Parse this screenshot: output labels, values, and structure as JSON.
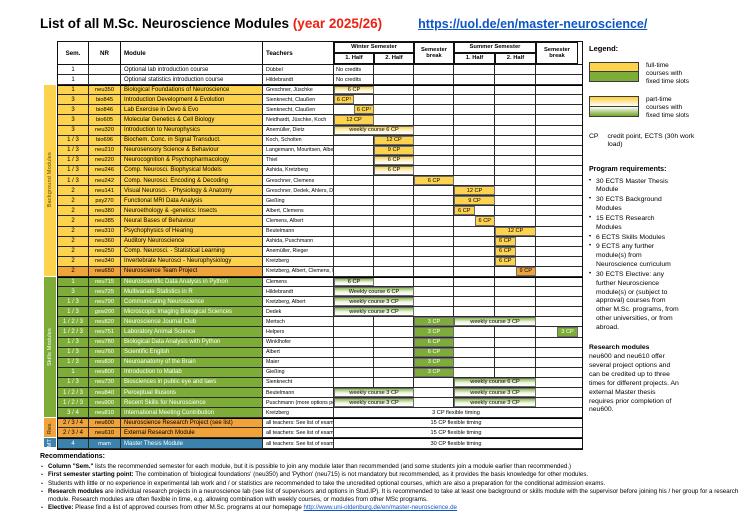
{
  "title": {
    "main": "List of all M.Sc. Neuroscience Modules ",
    "year": "(year 2025/26)",
    "link": "https://uol.de/en/master-neuroscience/"
  },
  "colors": {
    "background_yellow": "#fdd24c",
    "skills_green": "#7dad38",
    "research_orange": "#f0a339",
    "thesis_blue": "#3b83ad",
    "accent_red": "#ee2012",
    "link_blue": "#0c56c9"
  },
  "table": {
    "header": {
      "sem": "Sem.",
      "nr": "NR",
      "module": "Module",
      "teachers": "Teachers",
      "winter": "Winter Semester",
      "summer": "Summer Semester",
      "break": "Semester break",
      "half1": "1. Half",
      "half2": "2. Half"
    },
    "section_starts": [
      2,
      21,
      35,
      37
    ],
    "rows": [
      {
        "sem": "1",
        "nr": "",
        "module": "Optional lab introduction course",
        "teachers": "Dübbel",
        "color": "white",
        "bars": [
          {
            "s": 0,
            "w": 1,
            "fill": "plain",
            "text": "No credits"
          }
        ]
      },
      {
        "sem": "1",
        "nr": "",
        "module": "Optional statistics introduction course",
        "teachers": "Hildebrandt",
        "color": "white",
        "bars": [
          {
            "s": 0,
            "w": 1,
            "fill": "plain",
            "text": "No credits"
          }
        ]
      },
      {
        "sem": "1",
        "nr": "neu350",
        "module": "Biological Foundations of Neuroscience",
        "teachers": "Greschner, Jüschke",
        "color": "yellow",
        "bars": [
          {
            "s": 0,
            "w": 1,
            "fill": "gy",
            "text": "6 CP"
          }
        ]
      },
      {
        "sem": "3",
        "nr": "bio845",
        "module": "Introduction Development & Evolution",
        "teachers": "Sienknecht, Claußen",
        "color": "yellow",
        "bars": [
          {
            "s": 0,
            "w": 0.5,
            "fill": "sy",
            "text": "6 CP¹"
          }
        ]
      },
      {
        "sem": "3",
        "nr": "bio846",
        "module": "Lab Exercise in Devo & Evo",
        "teachers": "Sienknecht, Claußen",
        "color": "yellow",
        "bars": [
          {
            "s": 0.5,
            "w": 0.5,
            "fill": "sy",
            "text": "6 CP¹"
          }
        ]
      },
      {
        "sem": "3",
        "nr": "bio605",
        "module": "Molecular Genetics & Cell Biology",
        "teachers": "Neidhardt, Jüschke, Koch",
        "color": "yellow",
        "bars": [
          {
            "s": 0,
            "w": 1,
            "fill": "sy",
            "text": "12 CP"
          }
        ]
      },
      {
        "sem": "3",
        "nr": "neu320",
        "module": "Introduction to Neurophysics",
        "teachers": "Anemüller, Dietz",
        "color": "yellow",
        "bars": [
          {
            "s": 0,
            "w": 2,
            "fill": "gy",
            "text": "weekly course 6 CP"
          }
        ]
      },
      {
        "sem": "1 / 3",
        "nr": "bio696",
        "module": "Biochem. Conc. in Signal Transduct.",
        "teachers": "Koch, Scholten",
        "color": "yellow",
        "bars": [
          {
            "s": 1,
            "w": 1,
            "fill": "sy",
            "text": "12 CP"
          }
        ]
      },
      {
        "sem": "1 / 3",
        "nr": "neu210",
        "module": "Neurosensory Science & Behaviour",
        "teachers": "Langemann, Mouritsen, Albert",
        "color": "yellow",
        "bars": [
          {
            "s": 1,
            "w": 1,
            "fill": "sy",
            "text": "9 CP"
          }
        ]
      },
      {
        "sem": "1 / 3",
        "nr": "neu220",
        "module": "Neurocognition & Psychopharmacology",
        "teachers": "Thiel",
        "color": "yellow",
        "bars": [
          {
            "s": 1,
            "w": 1,
            "fill": "gy",
            "text": "6 CP"
          }
        ]
      },
      {
        "sem": "1 / 3",
        "nr": "neu246",
        "module": "Comp. Neurosci. Biophysical Models",
        "teachers": "Ashida, Kretzberg",
        "color": "yellow",
        "bars": [
          {
            "s": 1,
            "w": 1,
            "fill": "gy",
            "text": "6 CP"
          }
        ]
      },
      {
        "sem": "1 / 3",
        "nr": "neu242",
        "module": "Comp. Neurosci. Encoding & Decoding",
        "teachers": "Greschner, Clemens",
        "color": "yellow",
        "bars": [
          {
            "s": 2,
            "w": 1,
            "fill": "sy",
            "text": "6 CP"
          }
        ]
      },
      {
        "sem": "2",
        "nr": "neu141",
        "module": "Visual Neurosci. - Physiology & Anatomy",
        "teachers": "Greschner, Dedek, Ahlers, Dörner",
        "color": "yellow",
        "bars": [
          {
            "s": 3,
            "w": 1,
            "fill": "sy",
            "text": "12 CP"
          }
        ]
      },
      {
        "sem": "2",
        "nr": "psy270",
        "module": "Functional MRI Data Analysis",
        "teachers": "Gießing",
        "color": "yellow",
        "bars": [
          {
            "s": 3,
            "w": 1,
            "fill": "sy",
            "text": "9 CP"
          }
        ]
      },
      {
        "sem": "2",
        "nr": "neu380",
        "module": "Neuroethology & -genetics: Insects",
        "teachers": "Albert, Clemens",
        "color": "yellow",
        "bars": [
          {
            "s": 3,
            "w": 0.5,
            "fill": "sy",
            "text": "6 CP"
          }
        ]
      },
      {
        "sem": "2",
        "nr": "neu385",
        "module": "Neural Bases of Behaviour",
        "teachers": "Clemens, Albert",
        "color": "yellow",
        "bars": [
          {
            "s": 3.5,
            "w": 0.5,
            "fill": "sy",
            "text": "6 CP"
          }
        ]
      },
      {
        "sem": "2",
        "nr": "neu310",
        "module": "Psychophysics of Hearing",
        "teachers": "Beutelmann",
        "color": "yellow",
        "bars": [
          {
            "s": 4,
            "w": 1,
            "fill": "sy",
            "text": "12 CP"
          }
        ]
      },
      {
        "sem": "2",
        "nr": "neu360",
        "module": "Auditory Neuroscience",
        "teachers": "Ashida, Puschmann",
        "color": "yellow",
        "bars": [
          {
            "s": 4,
            "w": 0.5,
            "fill": "sy",
            "text": "6 CP"
          }
        ]
      },
      {
        "sem": "2",
        "nr": "neu250",
        "module": "Comp. Neurosci. - Statistical Learning",
        "teachers": "Anemüller, Rieger",
        "color": "yellow",
        "bars": [
          {
            "s": 4,
            "w": 0.5,
            "fill": "sy",
            "text": "6 CP"
          }
        ]
      },
      {
        "sem": "2",
        "nr": "neu340",
        "module": "Invertebrate Neurosci - Neurophysiology",
        "teachers": "Kretzberg",
        "color": "yellow",
        "bars": [
          {
            "s": 4,
            "w": 0.5,
            "fill": "sy",
            "text": "6 CP"
          }
        ]
      },
      {
        "sem": "2",
        "nr": "neu650",
        "module": "Neuroscience Team Project",
        "teachers": "Kretzberg, Albert, Clemens, Rieger",
        "color": "orange",
        "bars": [
          {
            "s": 4.5,
            "w": 0.5,
            "fill": "or",
            "text": "9 CP"
          }
        ]
      },
      {
        "sem": "1",
        "nr": "neu715",
        "module": "Neuroscientific Data Analysis in Python",
        "teachers": "Clemens",
        "color": "green",
        "bars": [
          {
            "s": 0,
            "w": 1,
            "fill": "gg",
            "text": "6 CP"
          }
        ]
      },
      {
        "sem": "3",
        "nr": "neu725",
        "module": "Multivariate Statistics in R",
        "teachers": "Hildebrandt",
        "color": "green",
        "bars": [
          {
            "s": 0,
            "w": 2,
            "fill": "gg",
            "text": "Weekly course 6 CP"
          }
        ]
      },
      {
        "sem": "1 / 3",
        "nr": "neu790",
        "module": "Communicating Neuroscience",
        "teachers": "Kretzberg, Albert",
        "color": "green",
        "bars": [
          {
            "s": 0,
            "w": 2,
            "fill": "gg",
            "text": "weekly course 3 CP"
          }
        ]
      },
      {
        "sem": "1 / 3",
        "nr": "gsw200",
        "module": "Microscopic Imaging Biological Sciences",
        "teachers": "Dedek",
        "color": "green",
        "bars": [
          {
            "s": 0,
            "w": 2,
            "fill": "gg",
            "text": "weekly course 3 CP"
          }
        ]
      },
      {
        "sem": "1 / 2 / 3",
        "nr": "neu820",
        "module": "Neuroscience Journal Club",
        "teachers": "Mertsch",
        "color": "green",
        "bars": [
          {
            "s": 2,
            "w": 1,
            "fill": "sg",
            "text": "3 CP"
          },
          {
            "s": 3,
            "w": 2,
            "fill": "gg",
            "text": "weekly course 3 CP"
          }
        ]
      },
      {
        "sem": "1 / 2 / 3",
        "nr": "neu751",
        "module": "Laboratory Animal Science",
        "teachers": "Helpers",
        "color": "green",
        "bars": [
          {
            "s": 2,
            "w": 1,
            "fill": "sg",
            "text": "3 CP"
          },
          {
            "s": 5.5,
            "w": 0.5,
            "fill": "sg",
            "text": "3 CP"
          }
        ]
      },
      {
        "sem": "1 / 3",
        "nr": "neu780",
        "module": "Biological Data Analysis with Python",
        "teachers": "Winklhofer",
        "color": "green",
        "bars": [
          {
            "s": 2,
            "w": 1,
            "fill": "sg",
            "text": "6 CP"
          }
        ]
      },
      {
        "sem": "1 / 3",
        "nr": "neu760",
        "module": "Scientific English",
        "teachers": "Albert",
        "color": "green",
        "bars": [
          {
            "s": 2,
            "w": 1,
            "fill": "sg",
            "text": "6 CP"
          }
        ]
      },
      {
        "sem": "1 / 3",
        "nr": "neu830",
        "module": "Neuroanatomy of the Brain",
        "teachers": "Maier",
        "color": "green",
        "bars": [
          {
            "s": 2,
            "w": 1,
            "fill": "sg",
            "text": "3 CP"
          }
        ]
      },
      {
        "sem": "1",
        "nr": "neu800",
        "module": "Introduction to Matlab",
        "teachers": "Gießing",
        "color": "green",
        "bars": [
          {
            "s": 2,
            "w": 1,
            "fill": "sg",
            "text": "3 CP"
          }
        ]
      },
      {
        "sem": "1 / 3",
        "nr": "neu730",
        "module": "Biosciences in public eye and laws",
        "teachers": "Sienknecht",
        "color": "green",
        "bars": [
          {
            "s": 3,
            "w": 2,
            "fill": "gg",
            "text": "weekly course 6 CP"
          }
        ]
      },
      {
        "sem": "1 / 2 / 3",
        "nr": "neu840",
        "module": "Perceptual Illusions",
        "teachers": "Beutelmann",
        "color": "green",
        "bars": [
          {
            "s": 0,
            "w": 2,
            "fill": "gg",
            "text": "weekly course 3 CP"
          },
          {
            "s": 3,
            "w": 2,
            "fill": "gg",
            "text": "weekly course 3 CP"
          }
        ]
      },
      {
        "sem": "1 / 2 / 3",
        "nr": "neu900",
        "module": "Recent Skills for Neuroscience",
        "teachers": "Puschmann (more options possible)",
        "color": "green",
        "bars": [
          {
            "s": 0,
            "w": 2,
            "fill": "gg",
            "text": "weekly course 3 CP"
          },
          {
            "s": 3,
            "w": 2,
            "fill": "gg",
            "text": "weekly course 3 CP"
          }
        ]
      },
      {
        "sem": "3 / 4",
        "nr": "neu810",
        "module": "International Meeting Contribution",
        "teachers": "Kretzberg",
        "color": "green",
        "bars": [
          {
            "s": 0,
            "w": 6,
            "fill": "plainc",
            "text": "3 CP flexible timing"
          }
        ]
      },
      {
        "sem": "2 / 3 / 4",
        "nr": "neu600",
        "module": "Neuroscience Research Project (see list)",
        "teachers": "all teachers: See list of examiners",
        "color": "orange",
        "bars": [
          {
            "s": 0,
            "w": 6,
            "fill": "plainc",
            "text": "15 CP flexible timing"
          }
        ]
      },
      {
        "sem": "2 / 3 / 4",
        "nr": "neu610",
        "module": "External Research Module",
        "teachers": "all teachers: See list of examiners",
        "color": "orange",
        "bars": [
          {
            "s": 0,
            "w": 6,
            "fill": "plainc",
            "text": "15 CP flexible timing"
          }
        ]
      },
      {
        "sem": "4",
        "nr": "mam",
        "module": "Master Thesis Module",
        "teachers": "all teachers: See list of examiners",
        "color": "blue",
        "bars": [
          {
            "s": 0,
            "w": 6,
            "fill": "plainc",
            "text": "30 CP flexible timing"
          }
        ]
      }
    ]
  },
  "sidebar": [
    {
      "label": "Background Modules",
      "color": "yellow",
      "from": 2,
      "to": 20
    },
    {
      "label": "Skills Modules",
      "color": "green",
      "from": 21,
      "to": 34
    },
    {
      "label": "Res.",
      "color": "orange",
      "from": 35,
      "to": 36
    },
    {
      "label": "MT",
      "color": "blue",
      "from": 37,
      "to": 37
    }
  ],
  "legend": {
    "title": "Legend:",
    "fulltime_label": "full-time courses with fixed time slots",
    "parttime_label": "part-time courses with fixed time slots",
    "cp_abbr": "CP",
    "cp_text": "credit point, ECTS (30h work load)"
  },
  "program": {
    "title": "Program requirements:",
    "items": [
      "30 ECTS Master Thesis Module",
      "30 ECTS Background Modules",
      "15 ECTS Research Modules",
      "6 ECTS Skills Modules",
      "9 ECTS any further module(s) from Neuroscience curriculum",
      "30 ECTS Elective: any further Neuroscience module(s) or (subject to approval) courses from other M.Sc. programs, from other universities, or from abroad."
    ]
  },
  "research": {
    "title": "Research modules",
    "text": "neu600 and neu610 offer several project options and can be credited up to three times for different projects. An external Master thesis requires prior completion of neu600."
  },
  "recommendations": {
    "title": "Recommendations:",
    "items": [
      {
        "bold": "Column \"Sem.\"",
        "text": " lists the recommended semester for each module, but it is possible to join any module later than recommended (and some students join a module earlier than recommended.)",
        "link": ""
      },
      {
        "bold": "First semester starting point:",
        "text": " The combination of 'biological foundations' (neu350) and 'Python' (neu715) is not mandatory but recommended, as it provides the basis knowledge for other modules.",
        "link": ""
      },
      {
        "bold": "",
        "text": "Students with little or no experience in experimental lab work and / or statistics are recommended to take the uncredited optional courses, which are also a preparation for the conditional admission exams.",
        "link": ""
      },
      {
        "bold": "Research modules",
        "text": " are individual research projects in a neuroscience lab (see list of supervisors and options in Stud.IP). It is recommended to take at least one background or skills module with the supervisor before joining his / her group for a research module. Research modules are often flexible in time, e.g. allowing combination with weekly courses, or modules from other MSc programs.",
        "link": ""
      },
      {
        "bold": "Elective:",
        "text": " Please find a list of approved courses from other M.Sc. programs at our homepage ",
        "link": "http://www.uni-oldenburg.de/en/master-neuroscience.de"
      }
    ]
  }
}
